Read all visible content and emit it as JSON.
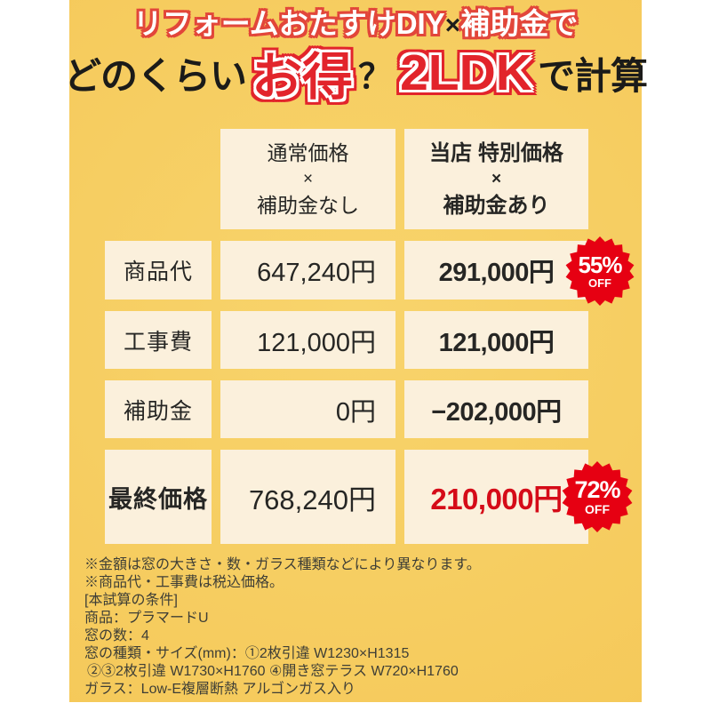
{
  "title": {
    "line1_part1": "リフォームおたすけDIY",
    "line1_cross": "×",
    "line1_part2": "補助金で",
    "line2_prefix": "どのくらい",
    "line2_highlight1": "お得",
    "line2_question": "？",
    "line2_highlight2": "2LDK",
    "line2_suffix": "で計算"
  },
  "table": {
    "col_headers": {
      "normal": {
        "line1": "通常価格",
        "cross": "×",
        "line2": "補助金なし"
      },
      "special": {
        "line1": "当店 特別価格",
        "cross": "×",
        "line2": "補助金あり"
      }
    },
    "rows": [
      {
        "label": "商品代",
        "normal": "647,240円",
        "special": "291,000円"
      },
      {
        "label": "工事費",
        "normal": "121,000円",
        "special": "121,000円"
      },
      {
        "label": "補助金",
        "normal": "0円",
        "special": "−202,000円"
      },
      {
        "label": "最終価格",
        "normal": "768,240円",
        "special": "210,000円"
      }
    ],
    "badges": [
      {
        "percent": "55%",
        "off": "OFF"
      },
      {
        "percent": "72%",
        "off": "OFF"
      }
    ]
  },
  "notes": [
    "※金額は窓の大きさ・数・ガラス種類などにより異なります。",
    "※商品代・工事費は税込価格。",
    "[本試算の条件]",
    "商品：プラマードU",
    "窓の数：4",
    "窓の種類・サイズ(mm)：①2枚引違 W1230×H1315",
    "②③2枚引違 W1730×H1760 ④開き窓テラス W720×H1760",
    "ガラス：Low-E複層断熱 アルゴンガス入り"
  ],
  "colors": {
    "background_yellow": "#F5C95A",
    "cell_cream": "#FBF0DC",
    "title_outline_red": "#E2463A",
    "highlight_red": "#E2242B",
    "final_price_red": "#D50B18",
    "badge_red": "#E60012",
    "text_dark": "#262624",
    "notes_text": "#3E3E36",
    "white": "#FFFFFF"
  }
}
